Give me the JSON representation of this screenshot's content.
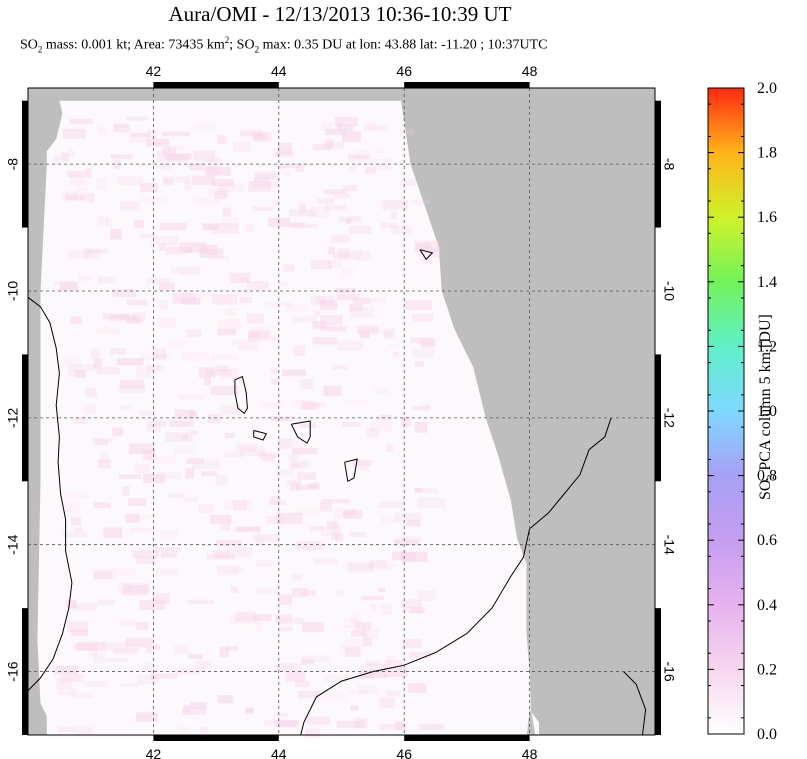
{
  "header": {
    "title": "Aura/OMI - 12/13/2013 10:36-10:39 UT",
    "subtitle_parts": {
      "so2_prefix": "SO",
      "so2_sub": "2",
      "mass_area": " mass: 0.001 kt; Area: 73435 km",
      "area_sup": "2",
      "so2_prefix2": "; SO",
      "so2_sub2": "2",
      "rest": " max: 0.35 DU at lon: 43.88 lat: -11.20 ; 10:37UTC"
    }
  },
  "colorbar": {
    "label_prefix": "SO",
    "label_sub": "2",
    "label_rest": " PCA column 5 km [DU]",
    "ticks": [
      "0.0",
      "0.2",
      "0.4",
      "0.6",
      "0.8",
      "1.0",
      "1.2",
      "1.4",
      "1.6",
      "1.8",
      "2.0"
    ],
    "range": [
      0.0,
      2.0
    ]
  },
  "chart_data": {
    "type": "heatmap",
    "title": "Aura/OMI - 12/13/2013 10:36-10:39 UT",
    "xlabel": "",
    "ylabel": "",
    "xlim": [
      40.0,
      50.0
    ],
    "ylim": [
      -17.0,
      -6.8
    ],
    "x_ticks": [
      "42",
      "44",
      "46",
      "48"
    ],
    "y_ticks": [
      "-8",
      "-10",
      "-12",
      "-14",
      "-16"
    ],
    "x_tick_values": [
      42,
      44,
      46,
      48
    ],
    "y_tick_values": [
      -8,
      -10,
      -12,
      -14,
      -16
    ],
    "grid": true,
    "no_data_color": "#bebebe",
    "colorbar_range": [
      0.0,
      2.0
    ],
    "max_value": 0.35,
    "max_location": {
      "lon": 43.88,
      "lat": -11.2
    }
  }
}
